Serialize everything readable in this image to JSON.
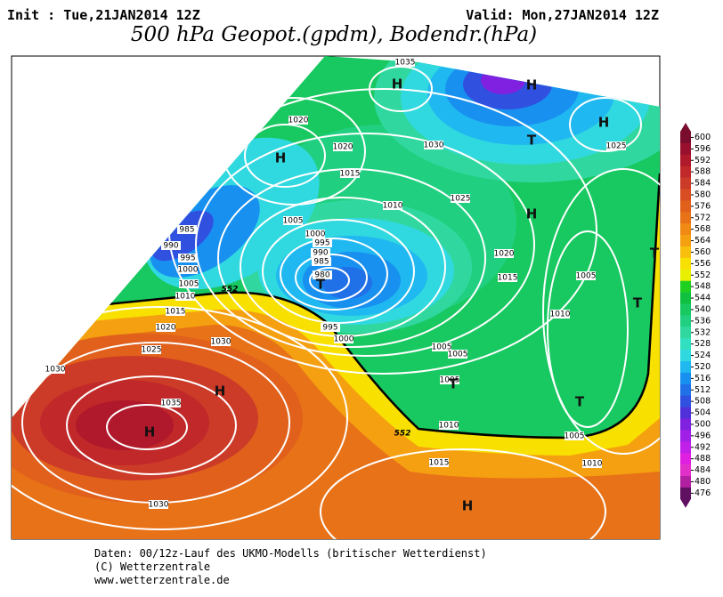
{
  "header": {
    "init": "Init : Tue,21JAN2014 12Z",
    "valid": "Valid: Mon,27JAN2014 12Z",
    "title": "500 hPa Geopot.(gpdm), Bodendr.(hPa)"
  },
  "map": {
    "isobar_labels": [
      1035,
      1020,
      1020,
      1030,
      1015,
      1010,
      1025,
      1005,
      1000,
      995,
      990,
      985,
      980,
      985,
      990,
      995,
      1000,
      1005,
      1010,
      1015,
      1020,
      1025,
      1030,
      1030,
      1035,
      1030,
      1020,
      1015,
      1005,
      1010,
      995,
      1000,
      1005,
      1005,
      1005,
      1010,
      1015,
      1005,
      1010,
      1025
    ],
    "contour_labels": [
      552,
      552
    ],
    "pressure_centers": [
      "H",
      "H",
      "H",
      "T",
      "H",
      "T",
      "H",
      "T",
      "T",
      "T",
      "T",
      "H",
      "H",
      "H"
    ]
  },
  "colorbar": {
    "values": [
      600,
      596,
      592,
      588,
      584,
      580,
      576,
      572,
      568,
      564,
      560,
      556,
      552,
      548,
      544,
      540,
      536,
      532,
      528,
      524,
      520,
      516,
      512,
      508,
      504,
      500,
      496,
      492,
      488,
      484,
      480,
      476
    ],
    "colors": [
      "#7a0c2e",
      "#98102e",
      "#b0182c",
      "#c0282a",
      "#cc3a28",
      "#d84e22",
      "#e0601c",
      "#e87218",
      "#f08a14",
      "#f5a010",
      "#f8c00c",
      "#f8e000",
      "#e8f000",
      "#20d020",
      "#10c040",
      "#18c860",
      "#20d080",
      "#30d8a0",
      "#30e0c0",
      "#30d8e0",
      "#20b8f0",
      "#1890f0",
      "#2070e8",
      "#3050e0",
      "#5030d8",
      "#8020e0",
      "#a020e8",
      "#c020e8",
      "#e020e0",
      "#e030c8",
      "#b020a0",
      "#601060"
    ]
  },
  "footer": [
    "Daten: 00/12z-Lauf des UKMO-Modells (britischer Wetterdienst)",
    "(C) Wetterzentrale",
    "www.wetterzentrale.de"
  ]
}
